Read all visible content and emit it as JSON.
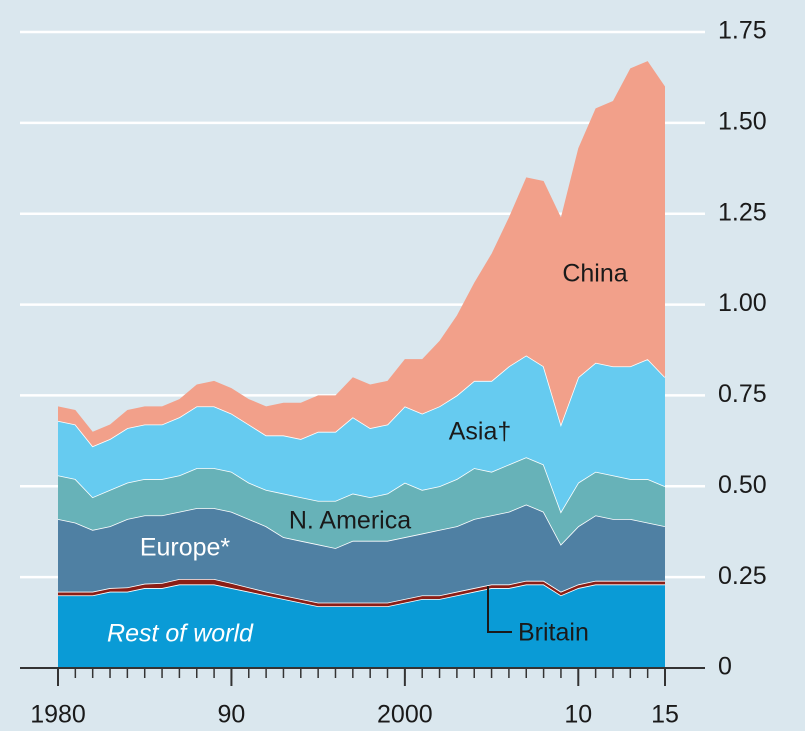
{
  "chart_data": {
    "type": "stacked_area",
    "x": [
      1980,
      1981,
      1982,
      1983,
      1984,
      1985,
      1986,
      1987,
      1988,
      1989,
      1990,
      1991,
      1992,
      1993,
      1994,
      1995,
      1996,
      1997,
      1998,
      1999,
      2000,
      2001,
      2002,
      2003,
      2004,
      2005,
      2006,
      2007,
      2008,
      2009,
      2010,
      2011,
      2012,
      2013,
      2014,
      2015
    ],
    "series": [
      {
        "name": "Rest of world",
        "color": "#0a9bd6",
        "values": [
          0.2,
          0.2,
          0.2,
          0.21,
          0.21,
          0.22,
          0.22,
          0.23,
          0.23,
          0.23,
          0.22,
          0.21,
          0.2,
          0.19,
          0.18,
          0.17,
          0.17,
          0.17,
          0.17,
          0.17,
          0.18,
          0.19,
          0.19,
          0.2,
          0.21,
          0.22,
          0.22,
          0.23,
          0.23,
          0.2,
          0.22,
          0.23,
          0.23,
          0.23,
          0.23,
          0.23
        ]
      },
      {
        "name": "Britain",
        "color": "#8b1e16",
        "values": [
          0.01,
          0.01,
          0.01,
          0.01,
          0.012,
          0.012,
          0.014,
          0.015,
          0.015,
          0.015,
          0.014,
          0.012,
          0.01,
          0.01,
          0.01,
          0.01,
          0.01,
          0.01,
          0.01,
          0.01,
          0.01,
          0.01,
          0.01,
          0.01,
          0.01,
          0.01,
          0.01,
          0.01,
          0.01,
          0.01,
          0.01,
          0.01,
          0.01,
          0.01,
          0.01,
          0.01
        ]
      },
      {
        "name": "Europe*",
        "color": "#4f80a3",
        "values": [
          0.2,
          0.19,
          0.17,
          0.17,
          0.188,
          0.188,
          0.186,
          0.185,
          0.195,
          0.195,
          0.196,
          0.188,
          0.18,
          0.16,
          0.16,
          0.16,
          0.15,
          0.17,
          0.17,
          0.17,
          0.17,
          0.17,
          0.18,
          0.18,
          0.19,
          0.19,
          0.2,
          0.21,
          0.19,
          0.13,
          0.16,
          0.18,
          0.17,
          0.17,
          0.16,
          0.15
        ]
      },
      {
        "name": "N. America",
        "color": "#67b2b8",
        "values": [
          0.12,
          0.12,
          0.09,
          0.1,
          0.1,
          0.1,
          0.1,
          0.1,
          0.11,
          0.11,
          0.11,
          0.1,
          0.1,
          0.12,
          0.12,
          0.12,
          0.13,
          0.13,
          0.12,
          0.13,
          0.15,
          0.12,
          0.12,
          0.13,
          0.14,
          0.12,
          0.13,
          0.13,
          0.13,
          0.09,
          0.12,
          0.12,
          0.12,
          0.11,
          0.12,
          0.11
        ]
      },
      {
        "name": "Asia†",
        "color": "#66cbf0",
        "values": [
          0.15,
          0.15,
          0.14,
          0.14,
          0.15,
          0.15,
          0.15,
          0.16,
          0.17,
          0.17,
          0.16,
          0.16,
          0.15,
          0.16,
          0.16,
          0.19,
          0.19,
          0.21,
          0.19,
          0.19,
          0.21,
          0.21,
          0.22,
          0.23,
          0.24,
          0.25,
          0.27,
          0.28,
          0.27,
          0.24,
          0.29,
          0.3,
          0.3,
          0.31,
          0.33,
          0.3
        ]
      },
      {
        "name": "China",
        "color": "#f2a08a",
        "values": [
          0.04,
          0.04,
          0.04,
          0.04,
          0.05,
          0.05,
          0.05,
          0.05,
          0.06,
          0.07,
          0.07,
          0.07,
          0.08,
          0.09,
          0.1,
          0.1,
          0.1,
          0.11,
          0.12,
          0.12,
          0.13,
          0.15,
          0.18,
          0.22,
          0.27,
          0.35,
          0.41,
          0.49,
          0.51,
          0.57,
          0.63,
          0.7,
          0.73,
          0.82,
          0.82,
          0.8
        ]
      }
    ],
    "xlim": [
      1980,
      2015
    ],
    "xticks": [
      1980,
      {
        "value": 1990,
        "label": "90"
      },
      2000,
      {
        "value": 2010,
        "label": "10"
      },
      {
        "value": 2015,
        "label": "15"
      }
    ],
    "ylim": [
      0,
      1.75
    ],
    "yticks": [
      0,
      0.25,
      {
        "value": 0.5,
        "label": "0.50"
      },
      0.75,
      {
        "value": 1.0,
        "label": "1.00"
      },
      1.25,
      {
        "value": 1.5,
        "label": "1.50"
      },
      1.75
    ],
    "grid": true
  }
}
